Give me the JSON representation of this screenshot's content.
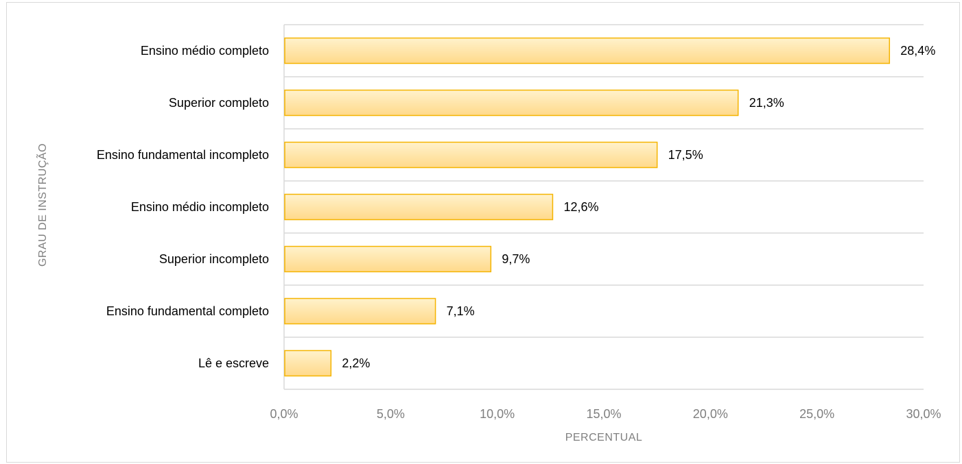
{
  "chart_data": {
    "type": "bar",
    "orientation": "horizontal",
    "categories": [
      "Ensino médio completo",
      "Superior completo",
      "Ensino fundamental incompleto",
      "Ensino médio incompleto",
      "Superior incompleto",
      "Ensino fundamental completo",
      "Lê e escreve"
    ],
    "values": [
      28.4,
      21.3,
      17.5,
      12.6,
      9.7,
      7.1,
      2.2
    ],
    "value_labels": [
      "28,4%",
      "21,3%",
      "17,5%",
      "12,6%",
      "9,7%",
      "7,1%",
      "2,2%"
    ],
    "xlabel": "PERCENTUAL",
    "ylabel": "GRAU DE INSTRUÇÃO",
    "xlim": [
      0,
      30
    ],
    "x_ticks": [
      0,
      5,
      10,
      15,
      20,
      25,
      30
    ],
    "x_tick_labels": [
      "0,0%",
      "5,0%",
      "10,0%",
      "15,0%",
      "20,0%",
      "25,0%",
      "30,0%"
    ],
    "grid": true,
    "bar_fill_top": "#fff2cc",
    "bar_fill_bottom": "#ffd98a",
    "bar_border": "#f5b400",
    "grid_color": "#d9d9d9"
  }
}
